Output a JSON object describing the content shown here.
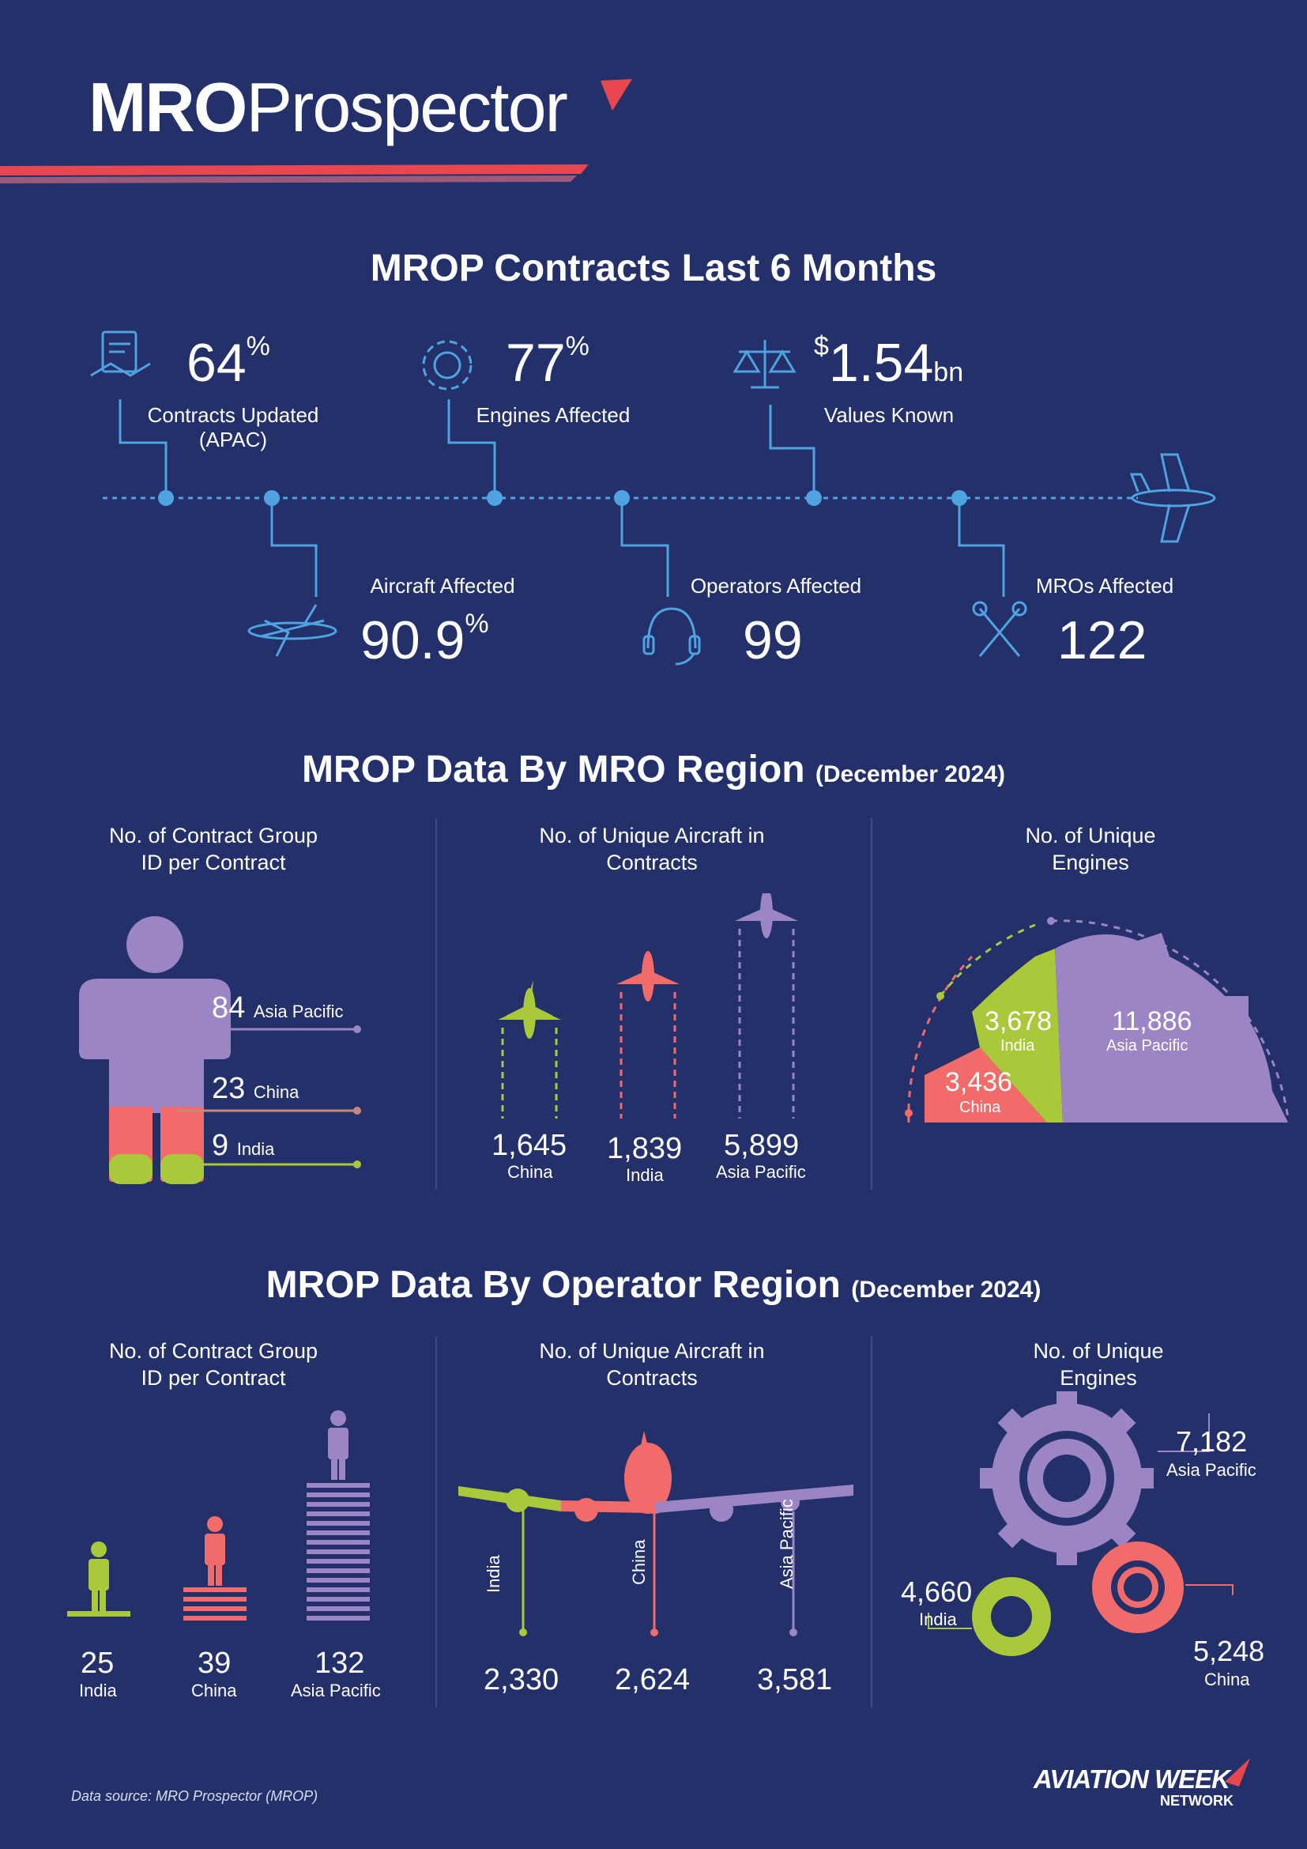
{
  "brand": {
    "logo_bold": "MRO",
    "logo_light": "Prospector"
  },
  "contracts": {
    "title": "MROP Contracts Last 6 Months",
    "stats": [
      {
        "value": "64",
        "unit": "%",
        "label": "Contracts Updated",
        "label2": "(APAC)"
      },
      {
        "value": "77",
        "unit": "%",
        "label": "Engines Affected"
      },
      {
        "prefix": "$",
        "value": "1.54",
        "unit": "bn",
        "label": "Values Known"
      },
      {
        "value": "90.9",
        "unit": "%",
        "label": "Aircraft Affected"
      },
      {
        "value": "99",
        "label": "Operators Affected"
      },
      {
        "value": "122",
        "label": "MROs Affected"
      }
    ]
  },
  "mro_region": {
    "title": "MROP Data By MRO Region",
    "date": "(December 2024)",
    "col1": {
      "title1": "No. of Contract Group",
      "title2": "ID per Contract",
      "items": [
        {
          "value": "84",
          "region": "Asia Pacific",
          "value_num": 84
        },
        {
          "value": "23",
          "region": "China",
          "value_num": 23
        },
        {
          "value": "9",
          "region": "India",
          "value_num": 9
        }
      ]
    },
    "col2": {
      "title1": "No. of Unique Aircraft in",
      "title2": "Contracts",
      "items": [
        {
          "value": "1,645",
          "region": "China",
          "value_num": 1645
        },
        {
          "value": "1,839",
          "region": "India",
          "value_num": 1839
        },
        {
          "value": "5,899",
          "region": "Asia Pacific",
          "value_num": 5899
        }
      ]
    },
    "col3": {
      "title1": "No. of Unique",
      "title2": "Engines",
      "items": [
        {
          "value": "3,678",
          "region": "India",
          "value_num": 3678
        },
        {
          "value": "11,886",
          "region": "Asia Pacific",
          "value_num": 11886
        },
        {
          "value": "3,436",
          "region": "China",
          "value_num": 3436
        }
      ]
    }
  },
  "operator_region": {
    "title": "MROP Data By Operator Region",
    "date": "(December 2024)",
    "col1": {
      "title1": "No. of Contract Group",
      "title2": "ID per Contract",
      "items": [
        {
          "value": "25",
          "region": "India",
          "value_num": 25
        },
        {
          "value": "39",
          "region": "China",
          "value_num": 39
        },
        {
          "value": "132",
          "region": "Asia Pacific",
          "value_num": 132
        }
      ]
    },
    "col2": {
      "title1": "No. of Unique Aircraft in",
      "title2": "Contracts",
      "items": [
        {
          "value": "2,330",
          "region": "India",
          "value_num": 2330
        },
        {
          "value": "2,624",
          "region": "China",
          "value_num": 2624
        },
        {
          "value": "3,581",
          "region": "Asia Pacific",
          "value_num": 3581
        }
      ]
    },
    "col3": {
      "title1": "No. of Unique",
      "title2": "Engines",
      "items": [
        {
          "value": "7,182",
          "region": "Asia Pacific",
          "value_num": 7182
        },
        {
          "value": "4,660",
          "region": "India",
          "value_num": 4660
        },
        {
          "value": "5,248",
          "region": "China",
          "value_num": 5248
        }
      ]
    }
  },
  "footer": {
    "source": "Data source: MRO Prospector (MROP)",
    "brand": "AVIATION WEEK",
    "brand_sub": "NETWORK"
  },
  "colors": {
    "background": "#23306a",
    "purple": "#9b85c4",
    "red": "#f26b6b",
    "green": "#a9c93b",
    "blue": "#4fa3e0",
    "stripe_red": "#e8474f"
  }
}
